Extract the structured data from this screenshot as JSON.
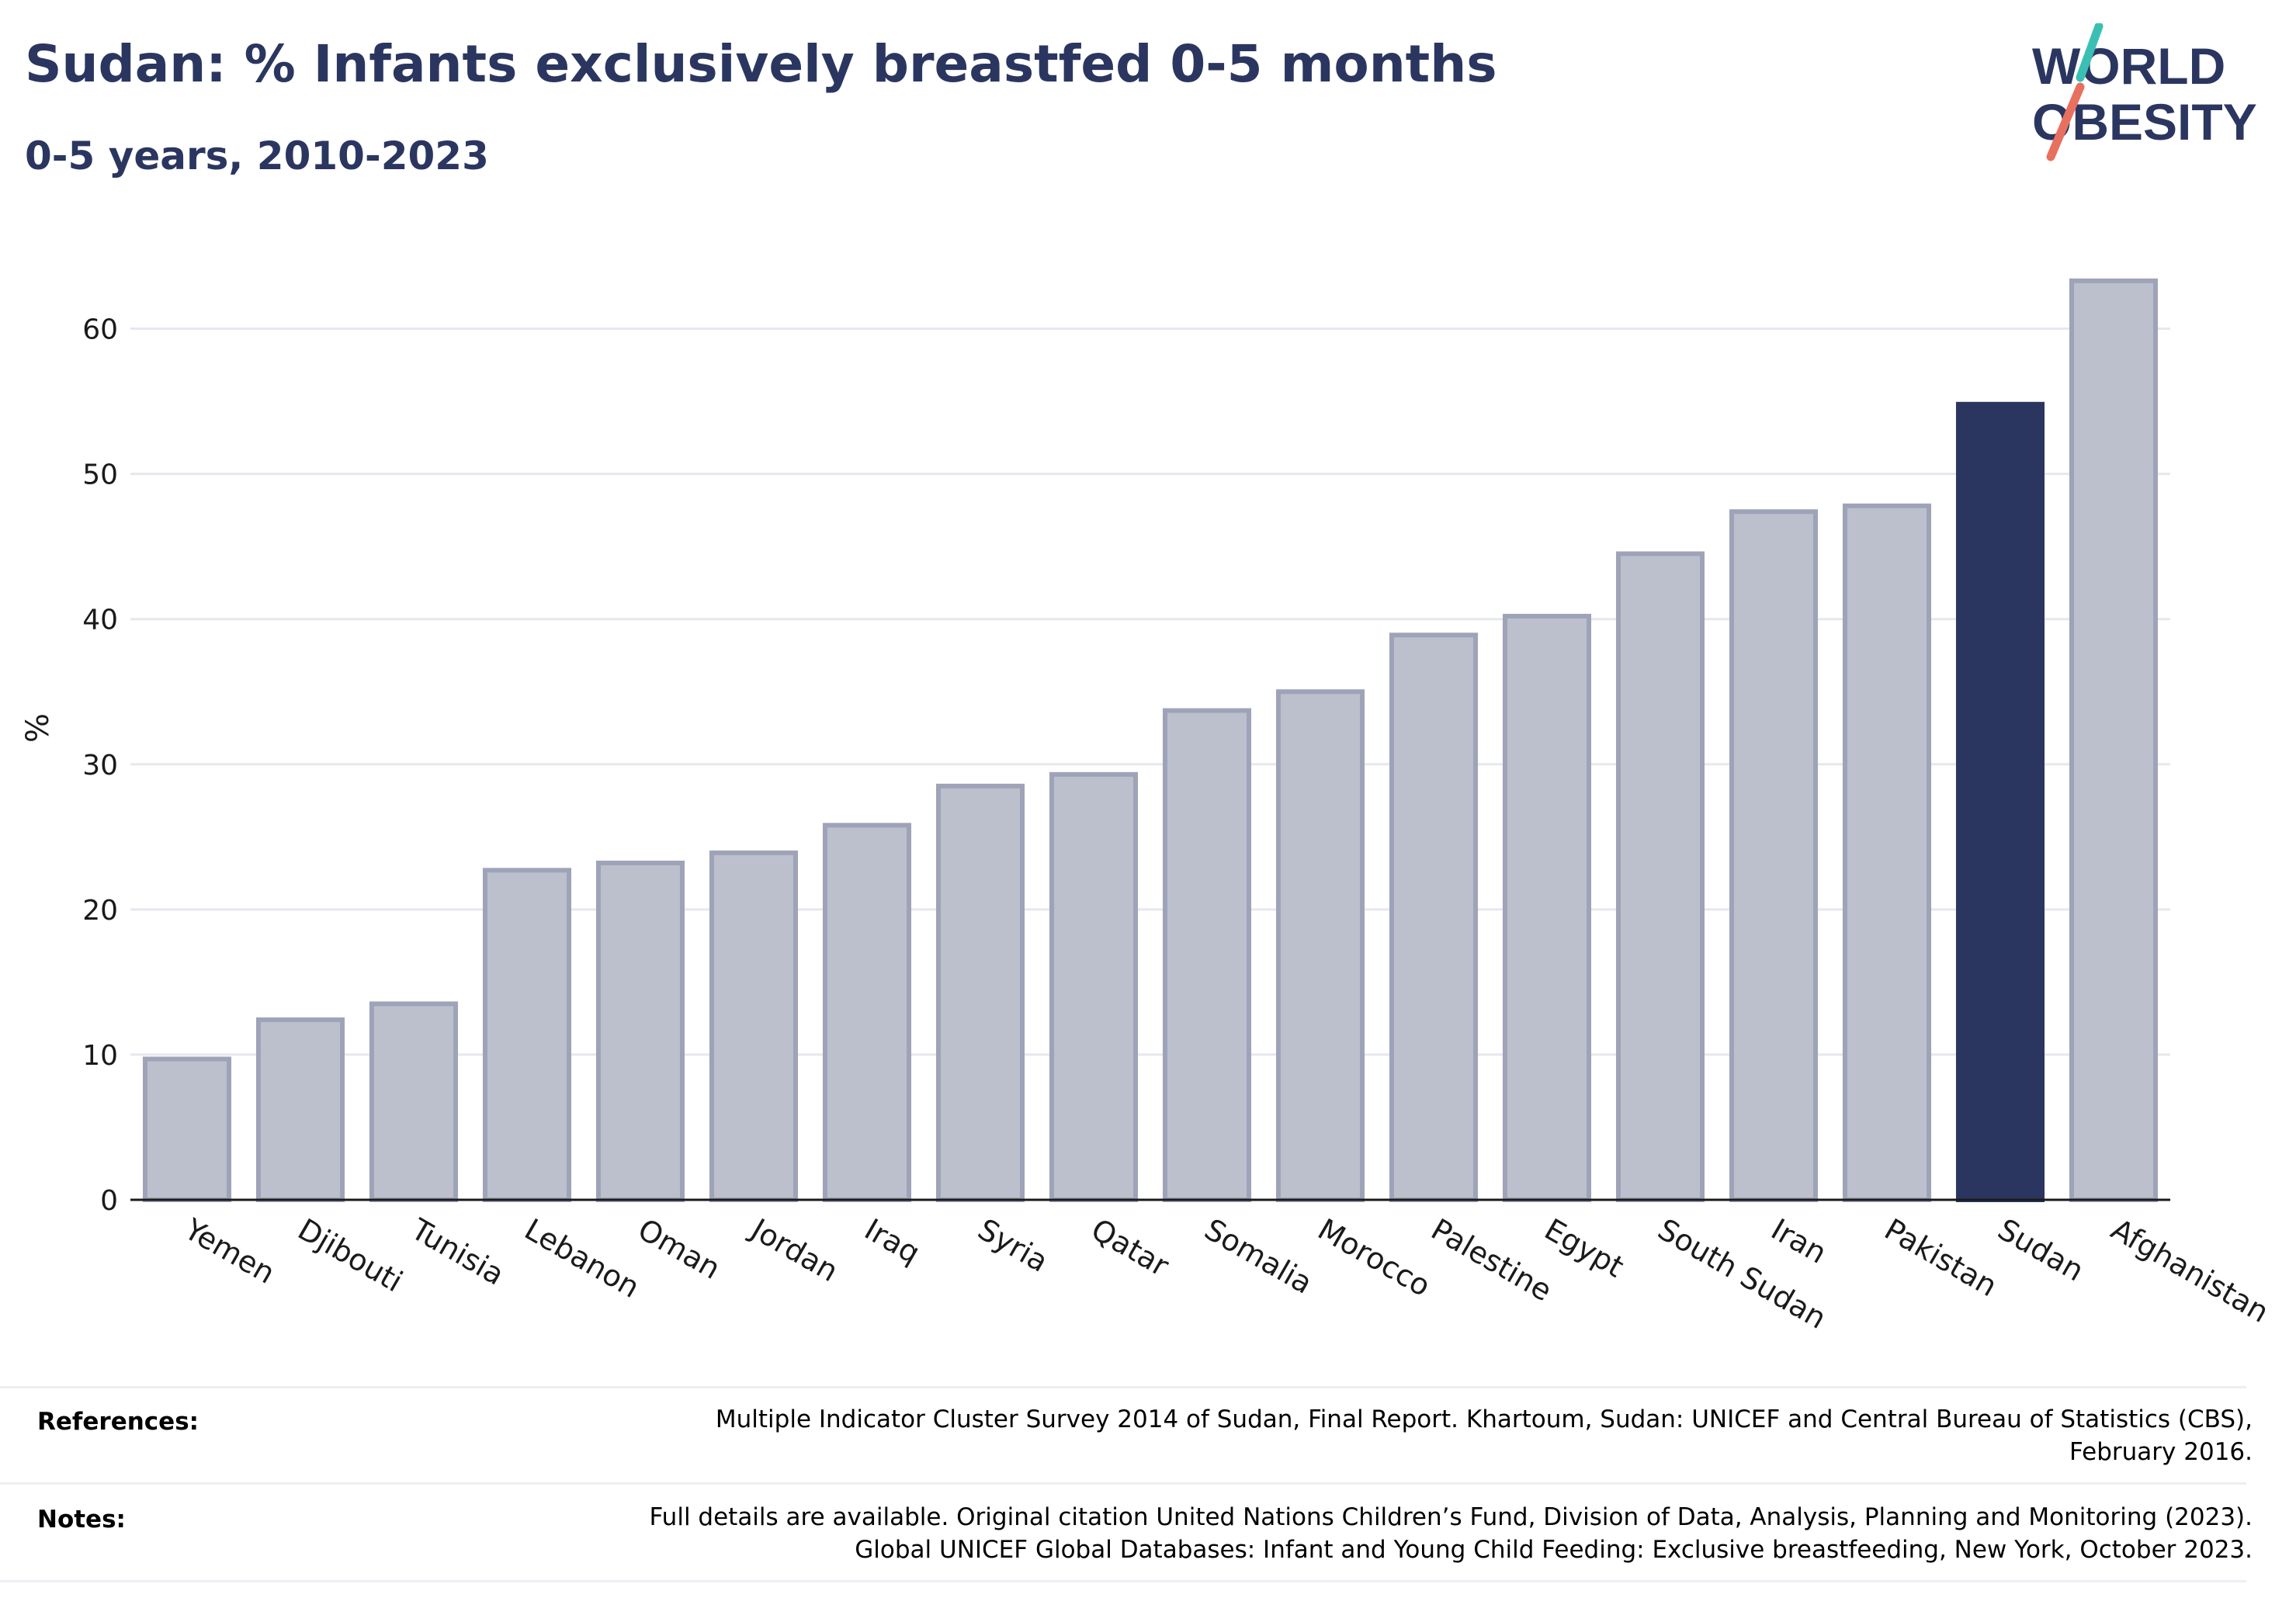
{
  "header": {
    "title": "Sudan: % Infants exclusively breastfed 0-5 months",
    "subtitle": "0-5 years, 2010-2023"
  },
  "logo": {
    "line1": "WORLD",
    "line2": "OBESITY",
    "accent_teal": "#3bbfb4",
    "accent_coral": "#e8705f",
    "text_color": "#2b3660"
  },
  "chart_data": {
    "type": "bar",
    "ylabel": "%",
    "ylim": [
      0,
      65
    ],
    "yticks": [
      0,
      10,
      20,
      30,
      40,
      50,
      60
    ],
    "grid": true,
    "categories": [
      "Yemen",
      "Djibouti",
      "Tunisia",
      "Lebanon",
      "Oman",
      "Jordan",
      "Iraq",
      "Syria",
      "Qatar",
      "Somalia",
      "Morocco",
      "Palestine",
      "Egypt",
      "South Sudan",
      "Iran",
      "Pakistan",
      "Sudan",
      "Afghanistan"
    ],
    "values": [
      9.7,
      12.4,
      13.5,
      22.7,
      23.2,
      23.9,
      25.8,
      28.5,
      29.3,
      33.7,
      35.0,
      38.9,
      40.2,
      44.5,
      47.4,
      47.8,
      54.8,
      63.3
    ],
    "highlight": "Sudan",
    "colors": {
      "bar_fill": "#bcc0cd",
      "bar_stroke": "#9ea3b8",
      "highlight_fill": "#2b3660",
      "gridline": "#e6e8ee",
      "axis_text": "#1a1a1a"
    }
  },
  "footer": {
    "references_label": "References:",
    "references_lines": [
      "Multiple Indicator Cluster Survey 2014 of Sudan, Final Report. Khartoum, Sudan: UNICEF and Central Bureau of Statistics (CBS),",
      "February 2016."
    ],
    "notes_label": "Notes:",
    "notes_lines": [
      "Full details are available. Original citation United Nations Children’s Fund, Division of Data, Analysis, Planning and Monitoring (2023).",
      "Global UNICEF Global Databases: Infant and Young Child Feeding: Exclusive breastfeeding, New York, October 2023."
    ]
  }
}
